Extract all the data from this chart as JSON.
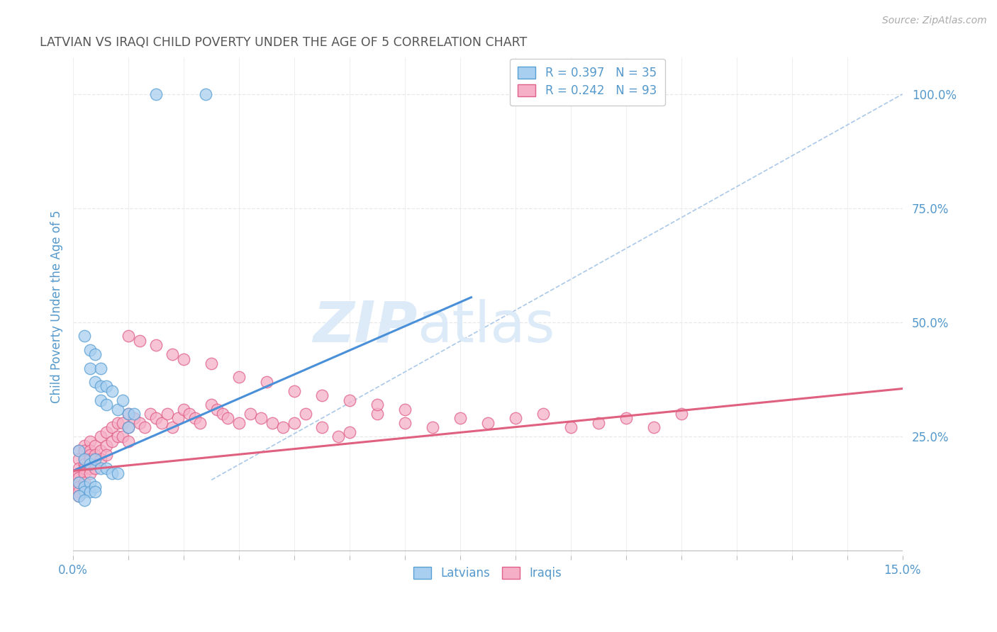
{
  "title": "LATVIAN VS IRAQI CHILD POVERTY UNDER THE AGE OF 5 CORRELATION CHART",
  "source": "Source: ZipAtlas.com",
  "ylabel": "Child Poverty Under the Age of 5",
  "xlim": [
    0.0,
    0.15
  ],
  "ylim": [
    -0.01,
    1.08
  ],
  "latvian_R": 0.397,
  "latvian_N": 35,
  "iraqi_R": 0.242,
  "iraqi_N": 93,
  "latvian_color": "#a8cff0",
  "iraqi_color": "#f5b0c8",
  "latvian_edge_color": "#5a9fd4",
  "iraqi_edge_color": "#e06088",
  "latvian_line_color": "#4a90d9",
  "iraqi_line_color": "#e06080",
  "ref_line_color": "#aac8e8",
  "background_color": "#ffffff",
  "grid_color": "#e8e8e8",
  "watermark_color": "#ddeaf8",
  "axis_label_color": "#5599cc",
  "tick_color": "#5599cc",
  "latvian_x": [
    0.015,
    0.024,
    0.002,
    0.003,
    0.003,
    0.004,
    0.004,
    0.005,
    0.005,
    0.005,
    0.006,
    0.006,
    0.007,
    0.008,
    0.009,
    0.01,
    0.01,
    0.011,
    0.001,
    0.002,
    0.003,
    0.004,
    0.005,
    0.006,
    0.007,
    0.008,
    0.001,
    0.002,
    0.002,
    0.003,
    0.003,
    0.004,
    0.004,
    0.001,
    0.002
  ],
  "latvian_y": [
    1.0,
    1.0,
    0.47,
    0.44,
    0.4,
    0.43,
    0.37,
    0.4,
    0.36,
    0.33,
    0.36,
    0.32,
    0.35,
    0.31,
    0.33,
    0.3,
    0.27,
    0.3,
    0.22,
    0.2,
    0.19,
    0.2,
    0.18,
    0.18,
    0.17,
    0.17,
    0.15,
    0.14,
    0.13,
    0.15,
    0.13,
    0.14,
    0.13,
    0.12,
    0.11
  ],
  "iraqi_x": [
    0.001,
    0.001,
    0.001,
    0.001,
    0.001,
    0.001,
    0.001,
    0.001,
    0.001,
    0.002,
    0.002,
    0.002,
    0.002,
    0.002,
    0.002,
    0.002,
    0.002,
    0.003,
    0.003,
    0.003,
    0.003,
    0.003,
    0.003,
    0.004,
    0.004,
    0.004,
    0.004,
    0.005,
    0.005,
    0.005,
    0.006,
    0.006,
    0.006,
    0.007,
    0.007,
    0.008,
    0.008,
    0.009,
    0.009,
    0.01,
    0.01,
    0.01,
    0.011,
    0.012,
    0.013,
    0.014,
    0.015,
    0.016,
    0.017,
    0.018,
    0.019,
    0.02,
    0.021,
    0.022,
    0.023,
    0.025,
    0.026,
    0.027,
    0.028,
    0.03,
    0.032,
    0.034,
    0.036,
    0.038,
    0.04,
    0.042,
    0.045,
    0.048,
    0.05,
    0.055,
    0.06,
    0.065,
    0.07,
    0.075,
    0.08,
    0.085,
    0.09,
    0.095,
    0.1,
    0.105,
    0.11,
    0.01,
    0.012,
    0.015,
    0.018,
    0.02,
    0.025,
    0.03,
    0.035,
    0.04,
    0.045,
    0.05,
    0.055,
    0.06
  ],
  "iraqi_y": [
    0.22,
    0.2,
    0.18,
    0.17,
    0.16,
    0.15,
    0.14,
    0.13,
    0.12,
    0.23,
    0.22,
    0.2,
    0.19,
    0.18,
    0.17,
    0.15,
    0.14,
    0.24,
    0.22,
    0.21,
    0.2,
    0.18,
    0.17,
    0.23,
    0.21,
    0.2,
    0.18,
    0.25,
    0.22,
    0.2,
    0.26,
    0.23,
    0.21,
    0.27,
    0.24,
    0.28,
    0.25,
    0.28,
    0.25,
    0.3,
    0.27,
    0.24,
    0.29,
    0.28,
    0.27,
    0.3,
    0.29,
    0.28,
    0.3,
    0.27,
    0.29,
    0.31,
    0.3,
    0.29,
    0.28,
    0.32,
    0.31,
    0.3,
    0.29,
    0.28,
    0.3,
    0.29,
    0.28,
    0.27,
    0.28,
    0.3,
    0.27,
    0.25,
    0.26,
    0.3,
    0.28,
    0.27,
    0.29,
    0.28,
    0.29,
    0.3,
    0.27,
    0.28,
    0.29,
    0.27,
    0.3,
    0.47,
    0.46,
    0.45,
    0.43,
    0.42,
    0.41,
    0.38,
    0.37,
    0.35,
    0.34,
    0.33,
    0.32,
    0.31
  ],
  "latvian_trend_x": [
    0.0,
    0.072
  ],
  "latvian_trend_y": [
    0.175,
    0.555
  ],
  "iraqi_trend_x": [
    0.0,
    0.15
  ],
  "iraqi_trend_y": [
    0.175,
    0.355
  ],
  "ref_line_x": [
    0.025,
    0.15
  ],
  "ref_line_y": [
    0.155,
    1.0
  ]
}
